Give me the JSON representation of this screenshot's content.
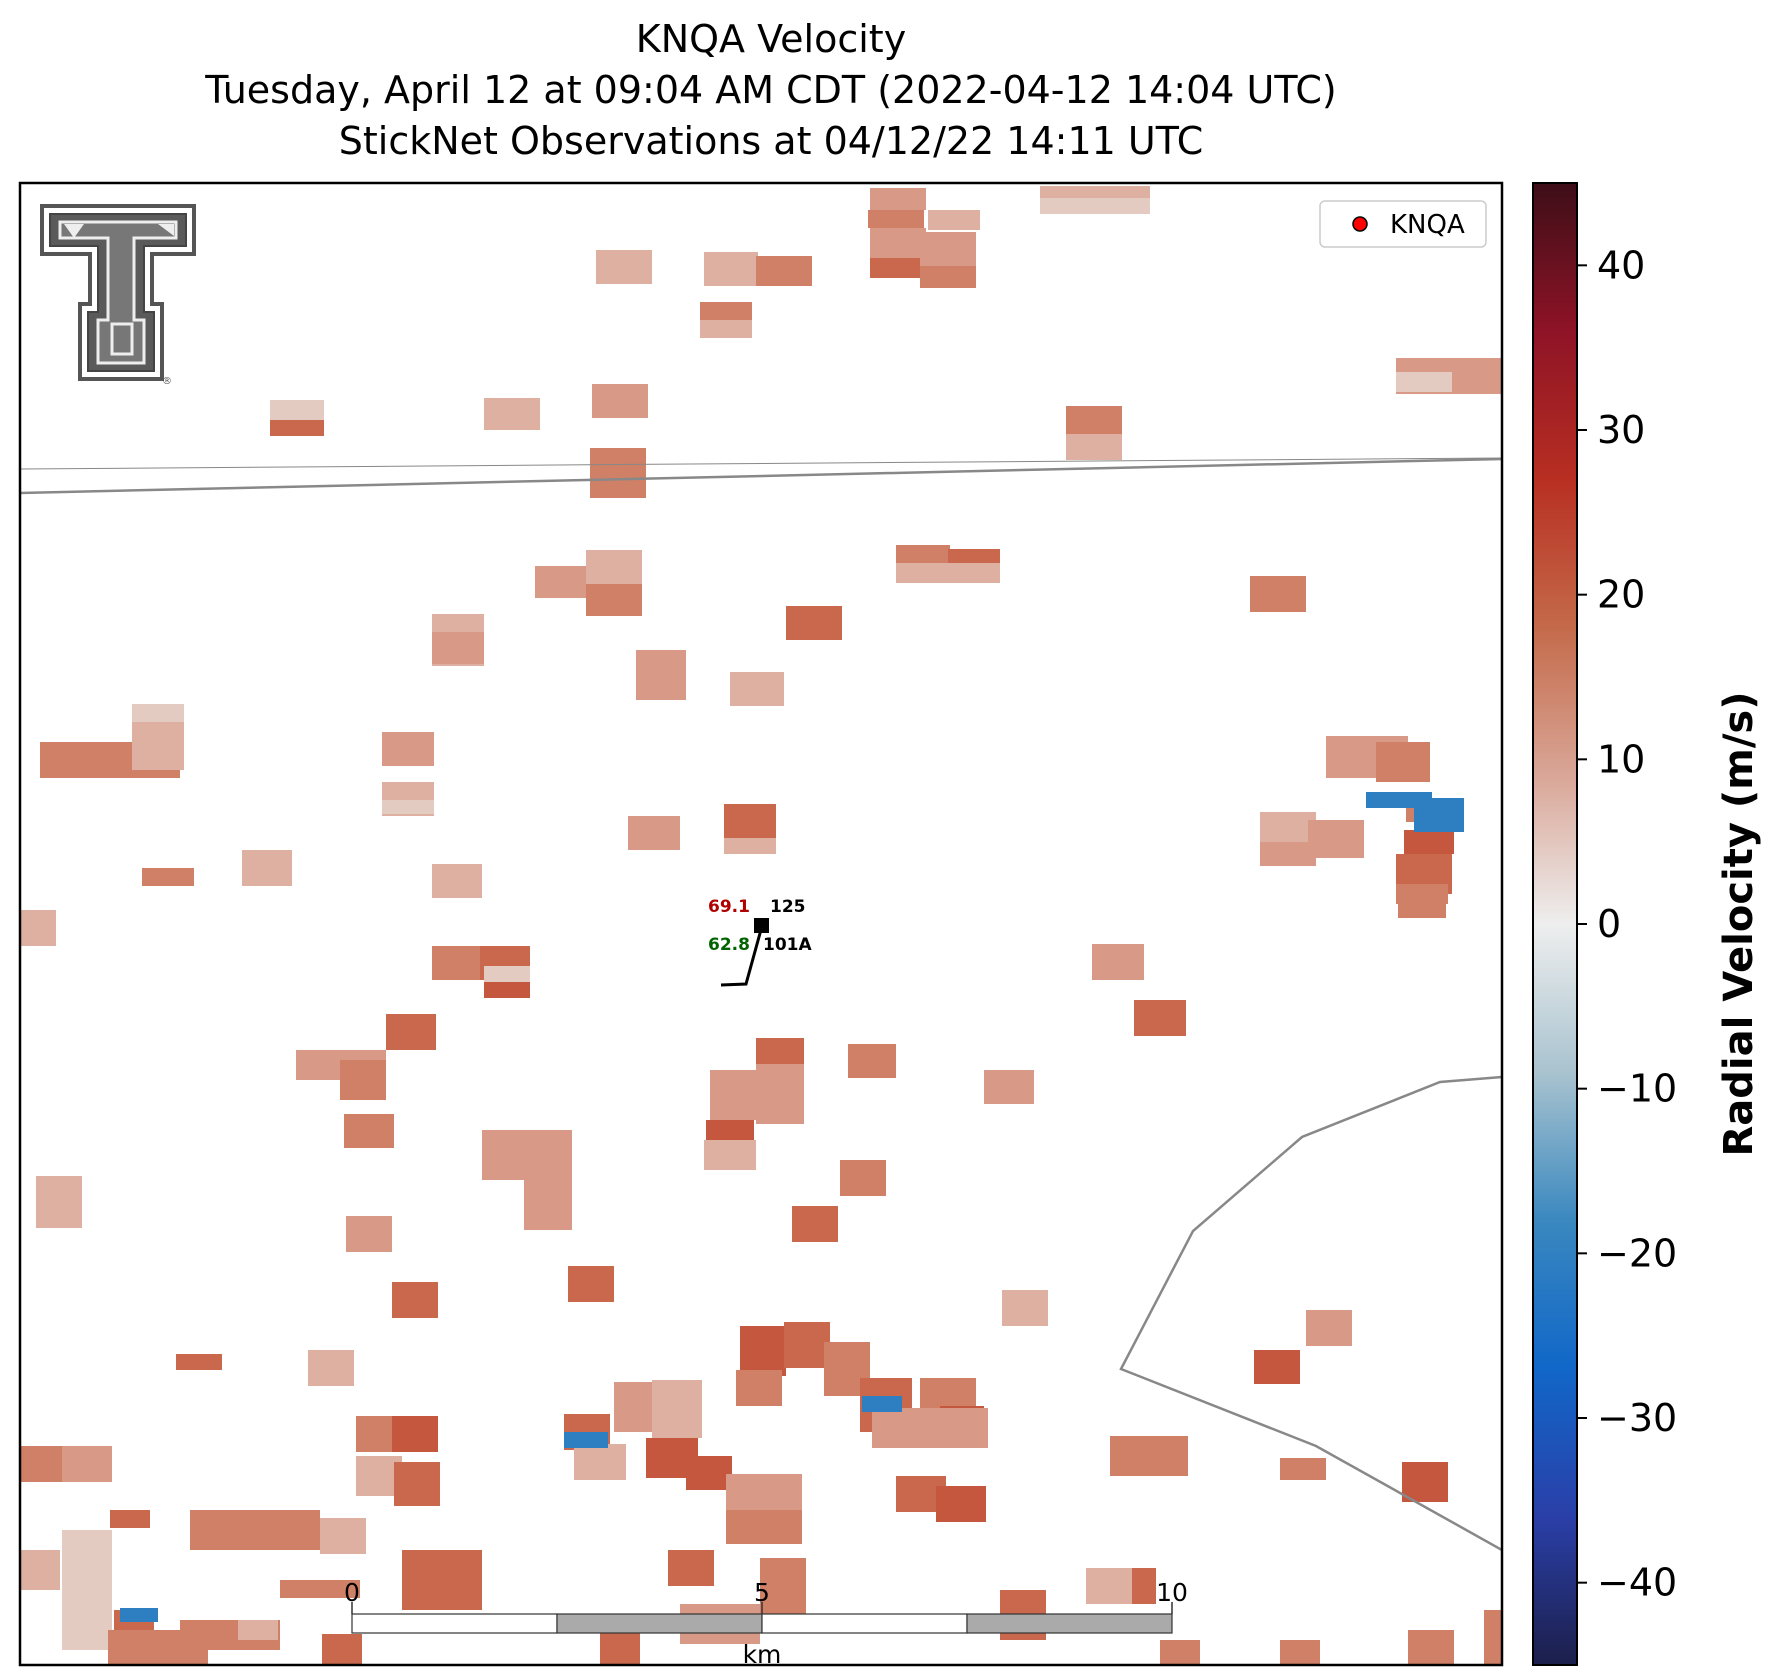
{
  "title": {
    "line1": "KNQA Velocity",
    "line2": "Tuesday, April 12 at 09:04 AM CDT (2022-04-12 14:04 UTC)",
    "line3": "StickNet Observations at 04/12/22 14:11 UTC"
  },
  "legend": {
    "label": "KNQA",
    "marker_color": "#ff0000"
  },
  "station": {
    "id": "101A",
    "temperature": "69.1",
    "pressure": "125",
    "dewpoint": "62.8",
    "temperature_color": "#b00000",
    "dewpoint_color": "#006400"
  },
  "scale_bar": {
    "ticks": [
      "0",
      "5",
      "10"
    ],
    "unit": "km"
  },
  "colorbar": {
    "label": "Radial Velocity (m/s)",
    "min": -45,
    "max": 45,
    "ticks": [
      40,
      30,
      20,
      10,
      0,
      -10,
      -20,
      -30,
      -40
    ],
    "tick_labels": [
      "40",
      "30",
      "20",
      "10",
      "0",
      "−10",
      "−20",
      "−30",
      "−40"
    ]
  },
  "logo": {
    "name": "Texas Tech Double T",
    "mark": "®"
  }
}
